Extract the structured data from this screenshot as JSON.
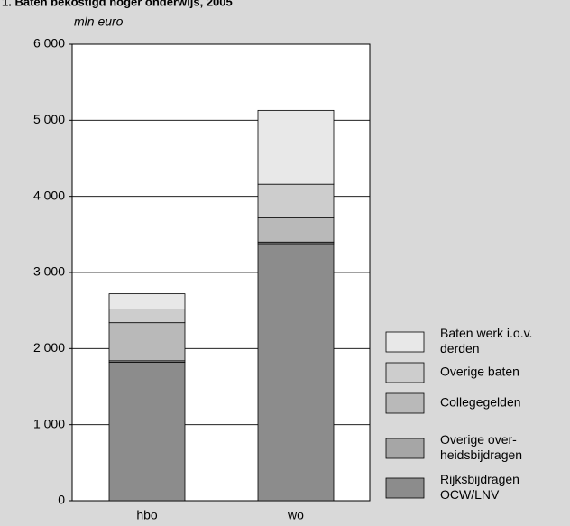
{
  "chart_data": {
    "type": "stacked_bar",
    "title": "1. Baten bekostigd hoger onderwijs, 2005",
    "y_label": "mln euro",
    "categories": [
      "hbo",
      "wo"
    ],
    "series": [
      {
        "name": "Rijksbijdragen\nOCW/LNV",
        "color": "#8c8c8c",
        "values": [
          1820,
          3380
        ]
      },
      {
        "name": "Overige over-\nheidsbijdragen",
        "color": "#a6a6a6",
        "values": [
          20,
          20
        ]
      },
      {
        "name": "Collegegelden",
        "color": "#b9b9b9",
        "values": [
          500,
          320
        ]
      },
      {
        "name": "Overige baten",
        "color": "#cdcdcd",
        "values": [
          180,
          440
        ]
      },
      {
        "name": "Baten werk i.o.v.\nderden",
        "color": "#e8e8e8",
        "values": [
          200,
          970
        ]
      }
    ],
    "ylim": [
      0,
      6000
    ],
    "yticks": [
      0,
      {
        "value": 1000,
        "label": "1 000"
      },
      {
        "value": 2000,
        "label": "2 000"
      },
      {
        "value": 3000,
        "label": "3 000"
      },
      {
        "value": 4000,
        "label": "4 000"
      },
      {
        "value": 5000,
        "label": "5 000"
      },
      {
        "value": 6000,
        "label": "6 000"
      }
    ],
    "grid": true
  }
}
